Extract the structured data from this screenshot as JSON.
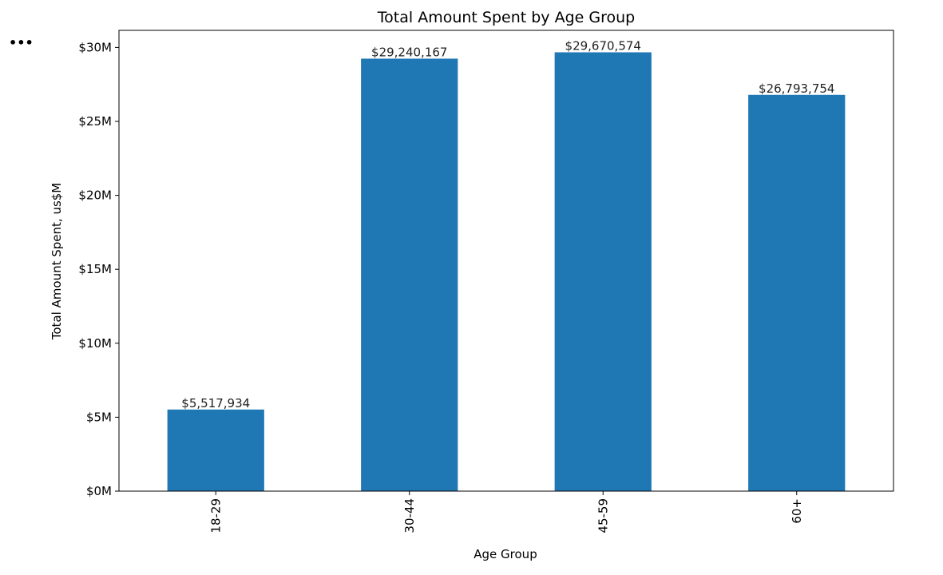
{
  "cell_menu": {
    "label": "•••"
  },
  "chart_data": {
    "type": "bar",
    "title": "Total Amount Spent by Age Group",
    "xlabel": "Age Group",
    "ylabel": "Total Amount Spent, us$M",
    "categories": [
      "18-29",
      "30-44",
      "45-59",
      "60+"
    ],
    "values": [
      5517934,
      29240167,
      29670574,
      26793754
    ],
    "data_labels": [
      "$5,517,934",
      "$29,240,167",
      "$29,670,574",
      "$26,793,754"
    ],
    "ylim": [
      0,
      31155103
    ],
    "yticks": [
      0,
      5000000,
      10000000,
      15000000,
      20000000,
      25000000,
      30000000
    ],
    "ytick_labels": [
      "$0M",
      "$5M",
      "$10M",
      "$15M",
      "$20M",
      "$25M",
      "$30M"
    ],
    "bar_color": "#1f77b4",
    "grid": false,
    "legend": false
  }
}
